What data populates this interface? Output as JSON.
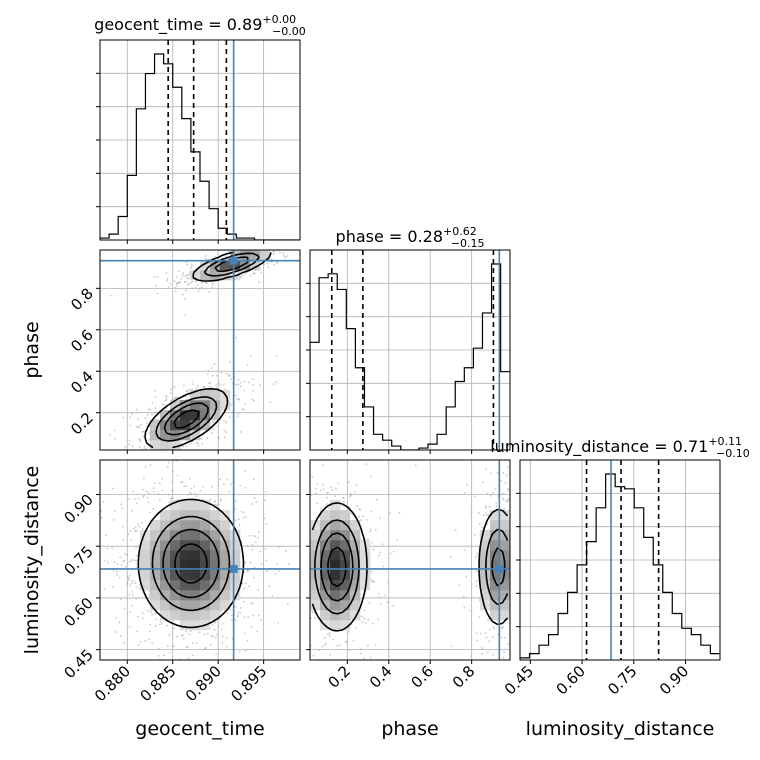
{
  "chart_data": {
    "type": "corner",
    "parameters": [
      "geocent_time",
      "phase",
      "luminosity_distance"
    ],
    "titles": [
      {
        "param": "geocent_time",
        "label": "geocent_time = 0.89",
        "plus": "+0.00",
        "minus": "−0.00"
      },
      {
        "param": "phase",
        "label": "phase = 0.28",
        "plus": "+0.62",
        "minus": "−0.15"
      },
      {
        "param": "luminosity_distance",
        "label": "luminosity_distance = 0.71",
        "plus": "+0.11",
        "minus": "−0.10"
      }
    ],
    "axes": {
      "geocent_time": {
        "range": [
          0.877,
          0.899
        ],
        "ticks": [
          0.88,
          0.885,
          0.89,
          0.895
        ],
        "tick_labels": [
          "0.880",
          "0.885",
          "0.890",
          "0.895"
        ]
      },
      "phase": {
        "range": [
          0.02,
          0.985
        ],
        "ticks": [
          0.2,
          0.4,
          0.6,
          0.8
        ],
        "tick_labels": [
          "0.2",
          "0.4",
          "0.6",
          "0.8"
        ]
      },
      "luminosity_distance": {
        "range": [
          0.42,
          1.0
        ],
        "ticks": [
          0.45,
          0.6,
          0.75,
          0.9
        ],
        "tick_labels": [
          "0.45",
          "0.60",
          "0.75",
          "0.90"
        ]
      }
    },
    "truth": {
      "geocent_time": 0.8917,
      "phase": 0.9335,
      "luminosity_distance": 0.684
    },
    "quantiles": {
      "geocent_time": [
        0.8845,
        0.8873,
        0.8909
      ],
      "phase": [
        0.125,
        0.275,
        0.905
      ],
      "luminosity_distance": [
        0.613,
        0.713,
        0.822
      ]
    },
    "histograms": {
      "geocent_time": {
        "bin_start": 0.877,
        "bin_width": 0.001,
        "counts": [
          1,
          3,
          12,
          33,
          67,
          85,
          95,
          90,
          78,
          62,
          45,
          30,
          16,
          6,
          3,
          1,
          1,
          0,
          0,
          0,
          0,
          0
        ]
      },
      "phase": {
        "bin_start": 0.02,
        "bin_width": 0.0438,
        "counts": [
          55,
          88,
          90,
          82,
          62,
          42,
          22,
          8,
          5,
          2,
          0,
          0,
          1,
          3,
          8,
          22,
          35,
          42,
          52,
          70,
          95,
          40
        ]
      },
      "luminosity_distance": {
        "bin_start": 0.42,
        "bin_width": 0.0276,
        "counts": [
          1,
          3,
          7,
          12,
          22,
          32,
          45,
          56,
          72,
          88,
          82,
          81,
          72,
          58,
          45,
          32,
          22,
          15,
          12,
          7,
          3
        ]
      }
    },
    "density_clusters": {
      "geocent_time_vs_phase": [
        {
          "x": 0.8915,
          "y": 0.915,
          "sx": 0.0022,
          "sy": 0.04,
          "rho": 0.7,
          "weight": 0.45
        },
        {
          "x": 0.8865,
          "y": 0.17,
          "sx": 0.0022,
          "sy": 0.07,
          "rho": 0.6,
          "weight": 0.55
        }
      ],
      "geocent_time_vs_luminosity_distance": [
        {
          "x": 0.887,
          "y": 0.7,
          "sx": 0.0028,
          "sy": 0.09,
          "rho": 0.0,
          "weight": 1.0
        }
      ],
      "phase_vs_luminosity_distance": [
        {
          "x": 0.15,
          "y": 0.69,
          "sx": 0.07,
          "sy": 0.09,
          "rho": 0.0,
          "weight": 0.6
        },
        {
          "x": 0.93,
          "y": 0.69,
          "sx": 0.05,
          "sy": 0.09,
          "rho": 0.0,
          "weight": 0.4
        }
      ]
    },
    "colors": {
      "truth": "#4682b4",
      "hist": "#000000",
      "grid": "#b0b0b0"
    },
    "grid": true
  }
}
